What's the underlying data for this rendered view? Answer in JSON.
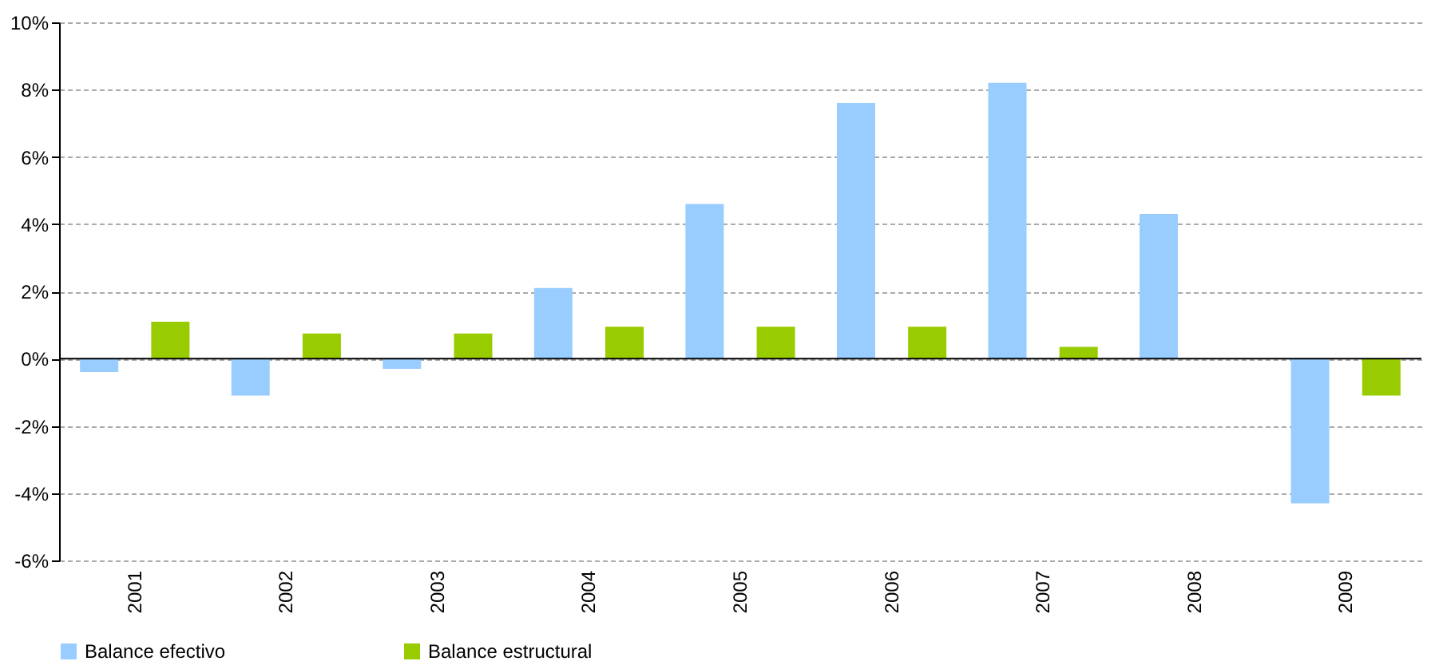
{
  "chart_data": {
    "type": "bar",
    "categories": [
      "2001",
      "2002",
      "2003",
      "2004",
      "2005",
      "2006",
      "2007",
      "2008",
      "2009"
    ],
    "series": [
      {
        "name": "Balance efectivo",
        "color": "#99ccff",
        "values": [
          -0.4,
          -1.1,
          -0.3,
          2.1,
          4.6,
          7.6,
          8.2,
          4.3,
          -4.3
        ]
      },
      {
        "name": "Balance estructural",
        "color": "#99cc00",
        "values": [
          1.1,
          0.75,
          0.75,
          0.95,
          0.95,
          0.95,
          0.35,
          null,
          -1.1
        ]
      }
    ],
    "ylim": [
      -6,
      10
    ],
    "yticks": [
      {
        "value": -6,
        "label": "-6%"
      },
      {
        "value": -4,
        "label": "-4%"
      },
      {
        "value": -2,
        "label": "-2%"
      },
      {
        "value": 0,
        "label": "0%"
      },
      {
        "value": 2,
        "label": "2%"
      },
      {
        "value": 4,
        "label": "4%"
      },
      {
        "value": 6,
        "label": "6%"
      },
      {
        "value": 8,
        "label": "8%"
      },
      {
        "value": 10,
        "label": "10%"
      }
    ],
    "grid": "y",
    "legend": "bottom"
  }
}
